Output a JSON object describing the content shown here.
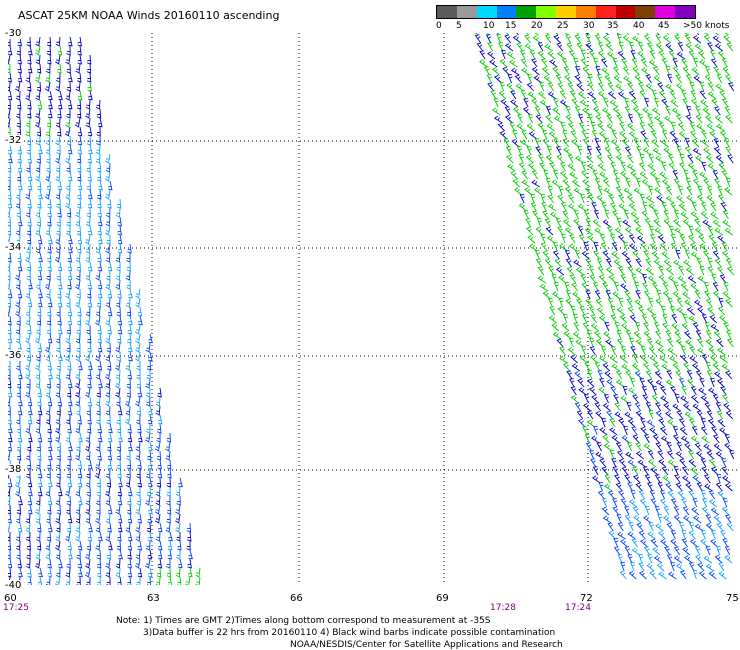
{
  "title": "ASCAT 25KM NOAA Winds 20160110 ascending",
  "colorbar": {
    "labels": [
      "0",
      "5",
      "10",
      "15",
      "20",
      "25",
      "30",
      "35",
      "40",
      "45",
      ">50 knots"
    ],
    "colors": [
      "#5a5a5a",
      "#9a9a9a",
      "#00d8ff",
      "#0080ff",
      "#00a000",
      "#80ff00",
      "#ffd000",
      "#ff8000",
      "#ff2020",
      "#c00000",
      "#804000",
      "#e000e0",
      "#8000c0"
    ]
  },
  "map": {
    "lat_labels": [
      "-30",
      "-32",
      "-34",
      "-36",
      "-38",
      "-40"
    ],
    "lon_labels": [
      "60",
      "63",
      "66",
      "69",
      "72",
      "75"
    ],
    "time_labels": [
      "17:25",
      "17:28",
      "17:24"
    ],
    "barb_colors": {
      "light_blue": "#0fa0ff",
      "blue": "#0000c0",
      "mid_blue": "#0040ff",
      "green": "#00cc00"
    }
  },
  "note": {
    "line1": "Note: 1) Times are GMT 2)Times along bottom correspond to measurement at -35S",
    "line2": "3)Data buffer is 22 hrs from 20160110 4) Black wind barbs indicate possible contamination",
    "line3": "NOAA/NESDIS/Center for Satellite Applications and Research"
  }
}
